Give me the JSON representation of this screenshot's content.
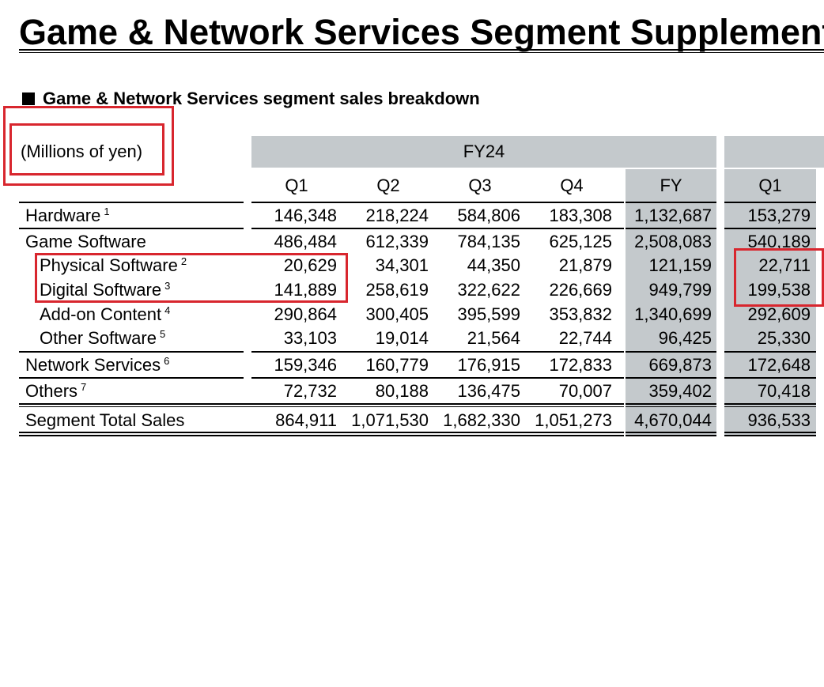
{
  "page": {
    "title": "Game & Network Services Segment Supplementary Information",
    "section_title": "Game & Network Services segment sales breakdown",
    "units": "(Millions of yen)"
  },
  "table": {
    "group_labels": [
      "FY24",
      ""
    ],
    "columns": [
      "Q1",
      "Q2",
      "Q3",
      "Q4",
      "FY",
      "Q1"
    ],
    "rows": [
      {
        "label": "Hardware",
        "note": "1",
        "indent": false,
        "values": [
          "146,348",
          "218,224",
          "584,806",
          "183,308",
          "1,132,687",
          "153,279"
        ]
      },
      {
        "label": "Game Software",
        "note": "",
        "indent": false,
        "values": [
          "486,484",
          "612,339",
          "784,135",
          "625,125",
          "2,508,083",
          "540,189"
        ]
      },
      {
        "label": "Physical Software",
        "note": "2",
        "indent": true,
        "values": [
          "20,629",
          "34,301",
          "44,350",
          "21,879",
          "121,159",
          "22,711"
        ]
      },
      {
        "label": "Digital Software",
        "note": "3",
        "indent": true,
        "values": [
          "141,889",
          "258,619",
          "322,622",
          "226,669",
          "949,799",
          "199,538"
        ]
      },
      {
        "label": "Add-on Content",
        "note": "4",
        "indent": true,
        "values": [
          "290,864",
          "300,405",
          "395,599",
          "353,832",
          "1,340,699",
          "292,609"
        ]
      },
      {
        "label": "Other Software",
        "note": "5",
        "indent": true,
        "values": [
          "33,103",
          "19,014",
          "21,564",
          "22,744",
          "96,425",
          "25,330"
        ]
      },
      {
        "label": "Network Services",
        "note": "6",
        "indent": false,
        "values": [
          "159,346",
          "160,779",
          "176,915",
          "172,833",
          "669,873",
          "172,648"
        ]
      },
      {
        "label": "Others",
        "note": "7",
        "indent": false,
        "values": [
          "72,732",
          "80,188",
          "136,475",
          "70,007",
          "359,402",
          "70,418"
        ]
      },
      {
        "label": "Segment Total Sales",
        "note": "",
        "indent": false,
        "values": [
          "864,911",
          "1,071,530",
          "1,682,330",
          "1,051,273",
          "4,670,044",
          "936,533"
        ]
      }
    ]
  },
  "annotation_color": "#d8262e",
  "band_color": "#c4c9cc"
}
